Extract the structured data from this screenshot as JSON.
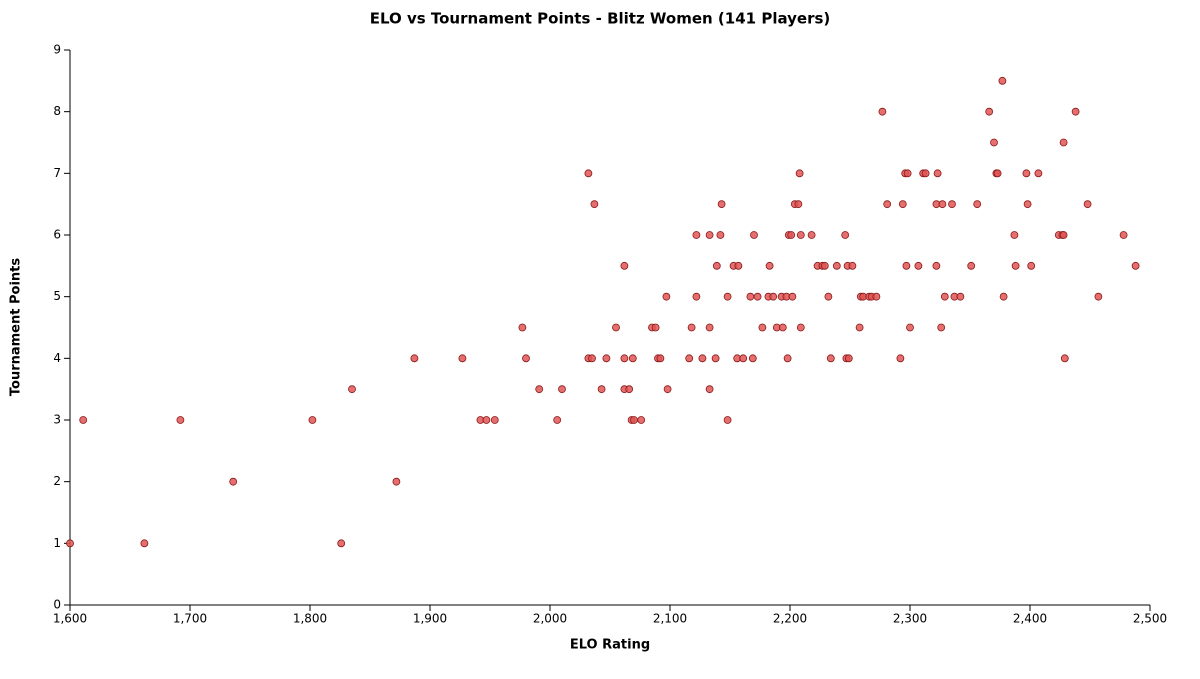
{
  "chart_data": {
    "type": "scatter",
    "title": "ELO vs Tournament Points - Blitz Women (141 Players)",
    "x_label": "ELO Rating",
    "y_label": "Tournament Points",
    "color": "#e05555",
    "stroke": "#8b1a1a",
    "xlim": [
      1600,
      2500
    ],
    "ylim": [
      0,
      9
    ],
    "xticks": [
      {
        "value": 1600,
        "label": "1,600"
      },
      {
        "value": 1700,
        "label": "1,700"
      },
      {
        "value": 1800,
        "label": "1,800"
      },
      {
        "value": 1900,
        "label": "1,900"
      },
      {
        "value": 2000,
        "label": "2,000"
      },
      {
        "value": 2100,
        "label": "2,100"
      },
      {
        "value": 2200,
        "label": "2,200"
      },
      {
        "value": 2300,
        "label": "2,300"
      },
      {
        "value": 2400,
        "label": "2,400"
      },
      {
        "value": 2500,
        "label": "2,500"
      }
    ],
    "yticks": [
      0,
      1,
      2,
      3,
      4,
      5,
      6,
      7,
      8,
      9
    ],
    "x": [
      1600,
      1611,
      1662,
      1692,
      1736,
      1802,
      1826,
      1835,
      1872,
      1887,
      1927,
      1942,
      1947,
      1954,
      1977,
      1980,
      1991,
      2006,
      2010,
      2032,
      2037,
      2032,
      2035,
      2043,
      2047,
      2055,
      2062,
      2062,
      2062,
      2066,
      2068,
      2069,
      2070,
      2076,
      2085,
      2088,
      2090,
      2092,
      2097,
      2098,
      2116,
      2118,
      2122,
      2122,
      2127,
      2133,
      2133,
      2133,
      2138,
      2139,
      2142,
      2143,
      2148,
      2148,
      2153,
      2157,
      2156,
      2161,
      2167,
      2169,
      2170,
      2173,
      2177,
      2182,
      2183,
      2186,
      2189,
      2193,
      2194,
      2197,
      2198,
      2199,
      2201,
      2202,
      2204,
      2207,
      2208,
      2209,
      2209,
      2218,
      2223,
      2227,
      2229,
      2232,
      2234,
      2239,
      2246,
      2247,
      2248,
      2249,
      2252,
      2258,
      2259,
      2261,
      2266,
      2268,
      2272,
      2277,
      2281,
      2292,
      2294,
      2296,
      2298,
      2297,
      2300,
      2307,
      2311,
      2313,
      2322,
      2322,
      2323,
      2326,
      2327,
      2329,
      2335,
      2337,
      2342,
      2351,
      2356,
      2366,
      2370,
      2372,
      2373,
      2377,
      2378,
      2387,
      2388,
      2397,
      2398,
      2401,
      2407,
      2424,
      2427,
      2428,
      2428,
      2429,
      2438,
      2448,
      2457,
      2478,
      2488
    ],
    "values": [
      1,
      3,
      1,
      3,
      2,
      3,
      1,
      3.5,
      2,
      4,
      4,
      3,
      3,
      3,
      4.5,
      4,
      3.5,
      3,
      3.5,
      7,
      6.5,
      4,
      4,
      3.5,
      4,
      4.5,
      5.5,
      4,
      3.5,
      3.5,
      3,
      4,
      3,
      3,
      4.5,
      4.5,
      4,
      4,
      5,
      3.5,
      4,
      4.5,
      6,
      5,
      4,
      6,
      4.5,
      3.5,
      4,
      5.5,
      6,
      6.5,
      5,
      3,
      5.5,
      5.5,
      4,
      4,
      5,
      4,
      6,
      5,
      4.5,
      5,
      5.5,
      5,
      4.5,
      5,
      4.5,
      5,
      4,
      6,
      6,
      5,
      6.5,
      6.5,
      7,
      6,
      4.5,
      6,
      5.5,
      5.5,
      5.5,
      5,
      4,
      5.5,
      6,
      4,
      5.5,
      4,
      5.5,
      4.5,
      5,
      5,
      5,
      5,
      5,
      8,
      6.5,
      4,
      6.5,
      7,
      7,
      5.5,
      4.5,
      5.5,
      7,
      7,
      6.5,
      5.5,
      7,
      4.5,
      6.5,
      5,
      6.5,
      5,
      5,
      5.5,
      6.5,
      8,
      7.5,
      7,
      7,
      8.5,
      5,
      6,
      5.5,
      7,
      6.5,
      5.5,
      7,
      6,
      6,
      7.5,
      6,
      4,
      8,
      6.5,
      5,
      6,
      5.5
    ]
  }
}
